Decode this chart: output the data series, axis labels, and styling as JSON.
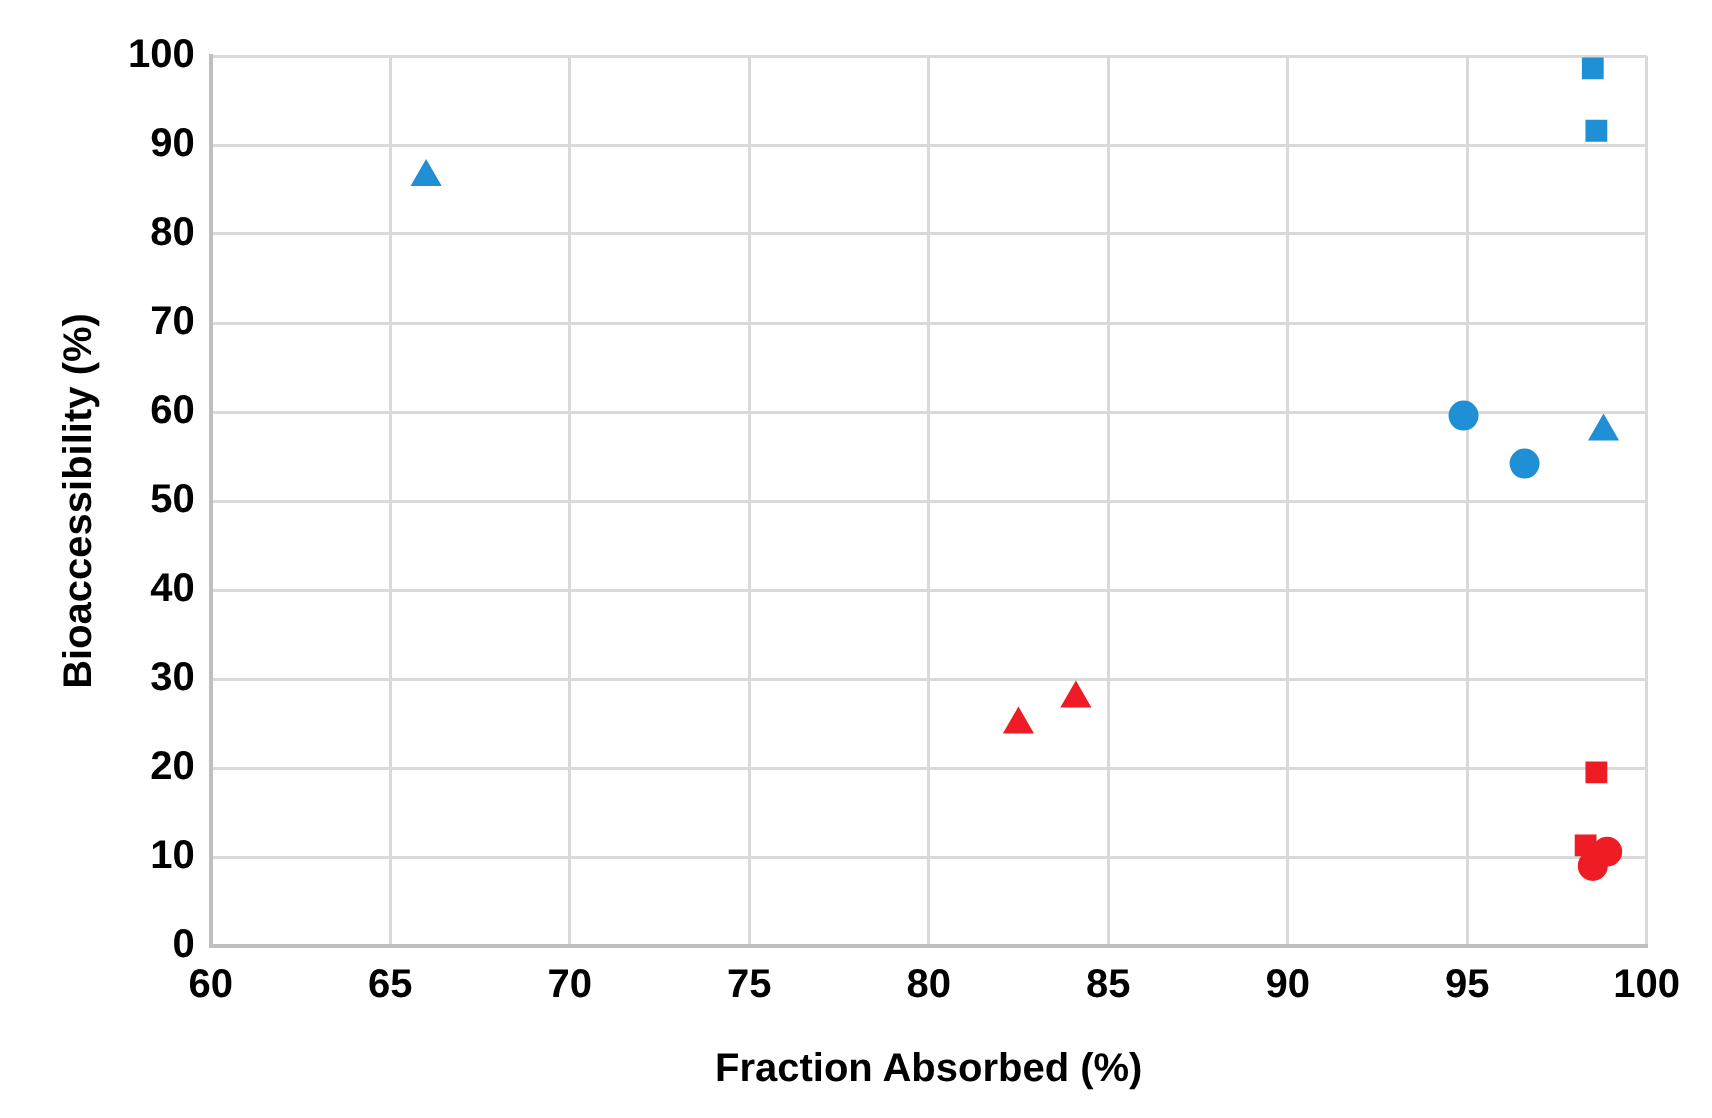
{
  "chart_data": {
    "type": "scatter",
    "xlabel": "Fraction Absorbed (%)",
    "ylabel": "Bioaccessibility (%)",
    "xlim": [
      60,
      100
    ],
    "xticks": [
      60,
      65,
      70,
      75,
      80,
      85,
      90,
      95,
      100
    ],
    "ylim": [
      0,
      100
    ],
    "yticks": [
      0,
      10,
      20,
      30,
      40,
      50,
      60,
      70,
      80,
      90,
      100
    ],
    "grid": true,
    "legend": false,
    "series": [
      {
        "color": "#1f8fd6",
        "marker": "triangle",
        "x": [
          66.0
        ],
        "values": [
          86.4
        ]
      },
      {
        "color": "#1f8fd6",
        "marker": "square",
        "x": [
          98.5
        ],
        "values": [
          98.6
        ]
      },
      {
        "color": "#1f8fd6",
        "marker": "square",
        "x": [
          98.6
        ],
        "values": [
          91.6
        ]
      },
      {
        "color": "#1f8fd6",
        "marker": "circle",
        "x": [
          94.9
        ],
        "values": [
          59.6
        ]
      },
      {
        "color": "#1f8fd6",
        "marker": "circle",
        "x": [
          96.6
        ],
        "values": [
          54.2
        ]
      },
      {
        "color": "#1f8fd6",
        "marker": "triangle",
        "x": [
          98.8
        ],
        "values": [
          57.8
        ]
      },
      {
        "color": "#ee1c25",
        "marker": "triangle",
        "x": [
          84.1
        ],
        "values": [
          27.8
        ]
      },
      {
        "color": "#ee1c25",
        "marker": "triangle",
        "x": [
          82.5
        ],
        "values": [
          24.9
        ]
      },
      {
        "color": "#ee1c25",
        "marker": "square",
        "x": [
          98.6
        ],
        "values": [
          19.5
        ]
      },
      {
        "color": "#ee1c25",
        "marker": "square",
        "x": [
          98.3
        ],
        "values": [
          11.3
        ]
      },
      {
        "color": "#ee1c25",
        "marker": "circle",
        "x": [
          98.9
        ],
        "values": [
          10.6
        ]
      },
      {
        "color": "#ee1c25",
        "marker": "circle",
        "x": [
          98.5
        ],
        "values": [
          9.0
        ]
      }
    ]
  }
}
